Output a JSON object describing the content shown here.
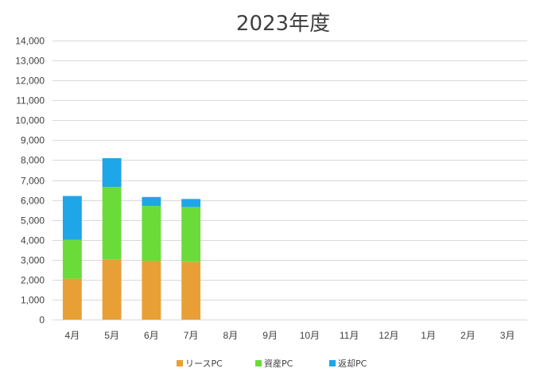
{
  "chart_data": {
    "type": "bar",
    "stacked": true,
    "title": "2023年度",
    "xlabel": "",
    "ylabel": "",
    "categories": [
      "4月",
      "5月",
      "6月",
      "7月",
      "8月",
      "9月",
      "10月",
      "11月",
      "12月",
      "1月",
      "2月",
      "3月"
    ],
    "series": [
      {
        "name": "リースPC",
        "color": "#E8A036",
        "values": [
          2050,
          3000,
          2950,
          2900,
          null,
          null,
          null,
          null,
          null,
          null,
          null,
          null
        ]
      },
      {
        "name": "資産PC",
        "color": "#6BDB3A",
        "values": [
          1950,
          3650,
          2750,
          2750,
          null,
          null,
          null,
          null,
          null,
          null,
          null,
          null
        ]
      },
      {
        "name": "返却PC",
        "color": "#1EA6E8",
        "values": [
          2200,
          1450,
          450,
          400,
          null,
          null,
          null,
          null,
          null,
          null,
          null,
          null
        ]
      }
    ],
    "ylim": [
      0,
      14000
    ],
    "yticks": [
      0,
      1000,
      2000,
      3000,
      4000,
      5000,
      6000,
      7000,
      8000,
      9000,
      10000,
      11000,
      12000,
      13000,
      14000
    ],
    "ytick_labels": [
      "0",
      "1,000",
      "2,000",
      "3,000",
      "4,000",
      "5,000",
      "6,000",
      "7,000",
      "8,000",
      "9,000",
      "10,000",
      "11,000",
      "12,000",
      "13,000",
      "14,000"
    ],
    "grid": true,
    "gridColor": "#D9D9D9",
    "legend_position": "bottom"
  }
}
